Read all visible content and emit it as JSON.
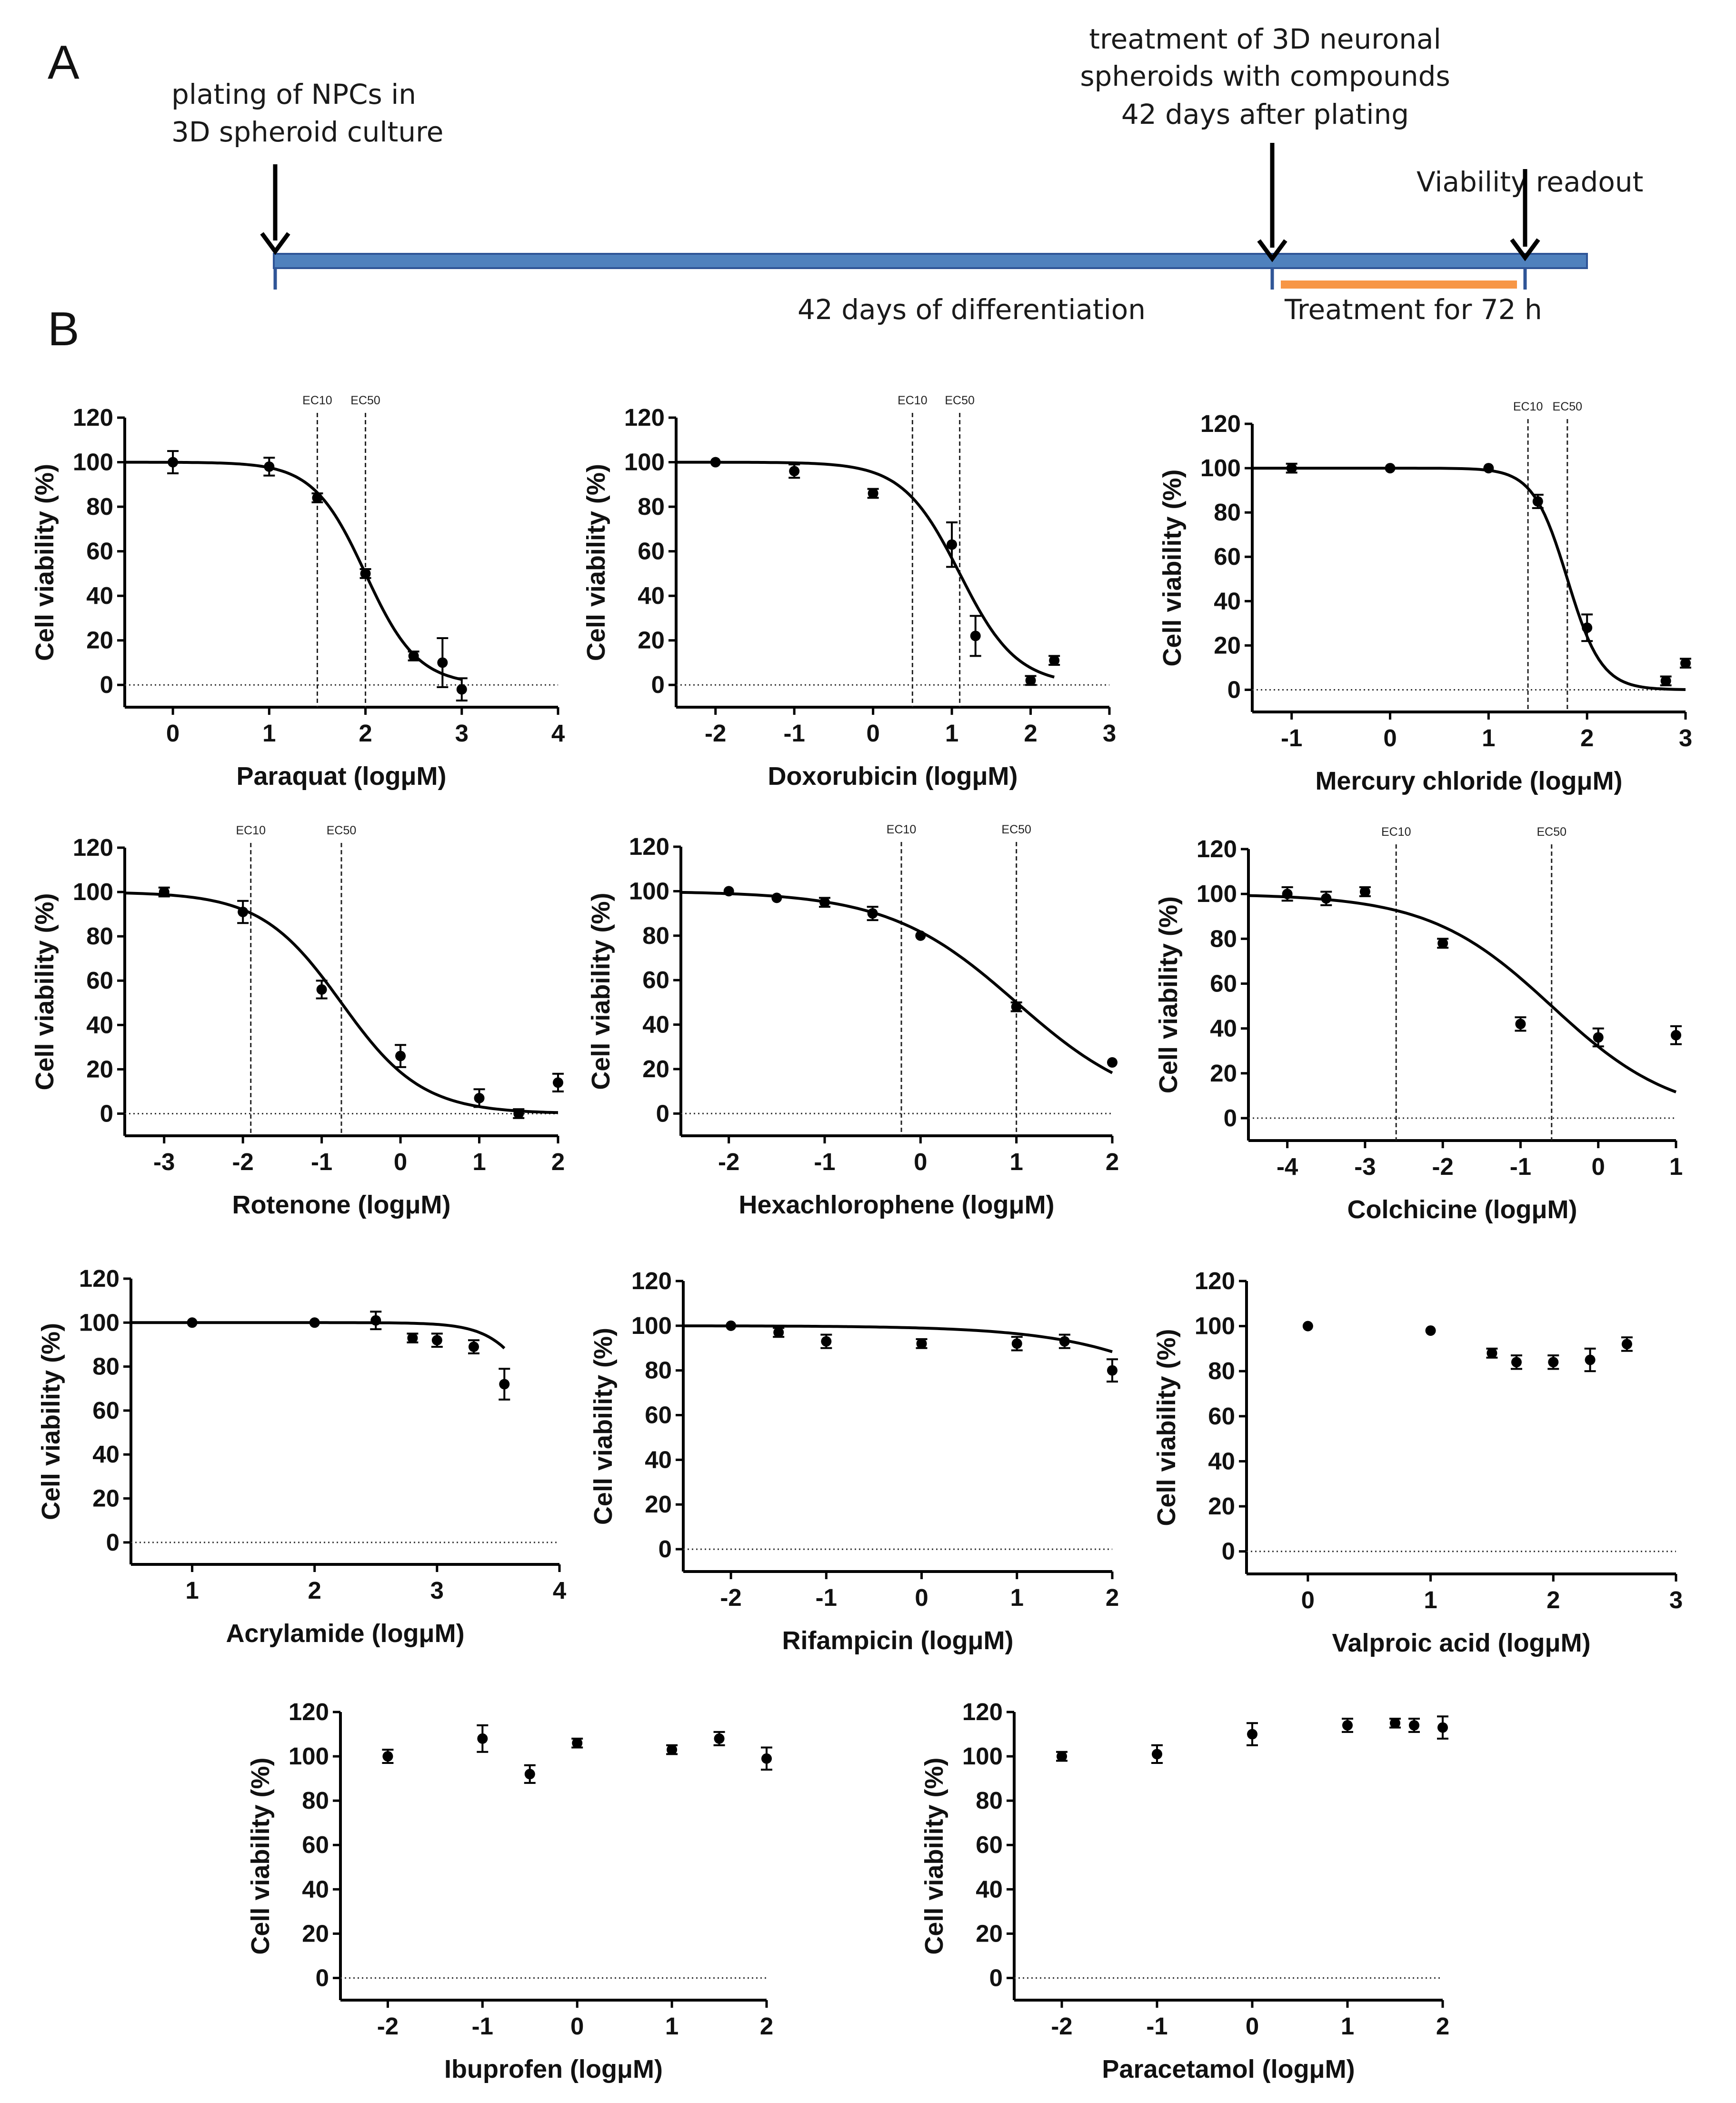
{
  "panel_a": {
    "letter": "A",
    "plating_label": [
      "plating of NPCs in",
      "3D spheroid culture"
    ],
    "treatment_label": [
      "treatment of 3D neuronal",
      "spheroids with compounds",
      "42 days after plating"
    ],
    "readout_label": "Viability readout",
    "differentiation_label": "42 days of differentiation",
    "treatment_duration_label": "Treatment for 72 h",
    "colors": {
      "timeline": "#4f81bd",
      "timeline_border": "#2f5597",
      "treatment_bar": "#f79646"
    }
  },
  "panel_b": {
    "letter": "B"
  },
  "chart_data": [
    {
      "id": "paraquat",
      "type": "scatter",
      "xlabel": "Paraquat (logμM)",
      "ylabel": "Cell viability (%)",
      "xlim": [
        -0.5,
        4
      ],
      "ylim": [
        -10,
        120
      ],
      "xticks": [
        0,
        1,
        2,
        3,
        4
      ],
      "yticks": [
        0,
        20,
        40,
        60,
        80,
        100,
        120
      ],
      "points": [
        {
          "x": 0,
          "y": 100,
          "err": 5
        },
        {
          "x": 1,
          "y": 98,
          "err": 4
        },
        {
          "x": 1.5,
          "y": 84,
          "err": 2
        },
        {
          "x": 2,
          "y": 50,
          "err": 2
        },
        {
          "x": 2.5,
          "y": 13,
          "err": 2
        },
        {
          "x": 2.8,
          "y": 10,
          "err": 11
        },
        {
          "x": 3,
          "y": -2,
          "err": 5
        }
      ],
      "fit": {
        "top": 100,
        "bottom": 0,
        "ec50": 2.0,
        "hill": -1.6,
        "x_range": [
          -0.5,
          3
        ]
      },
      "ec_lines": [
        {
          "label": "EC10",
          "x": 1.5
        },
        {
          "label": "EC50",
          "x": 2.0
        }
      ]
    },
    {
      "id": "doxorubicin",
      "type": "scatter",
      "xlabel": "Doxorubicin (logμM)",
      "ylabel": "Cell viability (%)",
      "xlim": [
        -2.5,
        3
      ],
      "ylim": [
        -10,
        120
      ],
      "xticks": [
        -2,
        -1,
        0,
        1,
        2,
        3
      ],
      "yticks": [
        0,
        20,
        40,
        60,
        80,
        100,
        120
      ],
      "points": [
        {
          "x": -2,
          "y": 100,
          "err": 0
        },
        {
          "x": -1,
          "y": 96,
          "err": 3
        },
        {
          "x": 0,
          "y": 86,
          "err": 2
        },
        {
          "x": 1,
          "y": 63,
          "err": 10
        },
        {
          "x": 1.3,
          "y": 22,
          "err": 9
        },
        {
          "x": 2,
          "y": 2,
          "err": 2
        },
        {
          "x": 2.3,
          "y": 11,
          "err": 2
        }
      ],
      "fit": {
        "top": 100,
        "bottom": 0,
        "ec50": 1.1,
        "hill": -1.2,
        "x_range": [
          -2.5,
          2.3
        ]
      },
      "ec_lines": [
        {
          "label": "EC10",
          "x": 0.5
        },
        {
          "label": "EC50",
          "x": 1.1
        }
      ]
    },
    {
      "id": "mercury_chloride",
      "type": "scatter",
      "xlabel": "Mercury chloride (logμM)",
      "ylabel": "Cell viability (%)",
      "xlim": [
        -1.4,
        3
      ],
      "ylim": [
        -10,
        120
      ],
      "xticks": [
        -1,
        0,
        1,
        2,
        3
      ],
      "yticks": [
        0,
        20,
        40,
        60,
        80,
        100,
        120
      ],
      "points": [
        {
          "x": -1,
          "y": 100,
          "err": 2
        },
        {
          "x": 0,
          "y": 100,
          "err": 0
        },
        {
          "x": 1,
          "y": 100,
          "err": 0
        },
        {
          "x": 1.5,
          "y": 85,
          "err": 3
        },
        {
          "x": 2,
          "y": 28,
          "err": 6
        },
        {
          "x": 2.8,
          "y": 4,
          "err": 2
        },
        {
          "x": 3,
          "y": 12,
          "err": 2
        }
      ],
      "fit": {
        "top": 100,
        "bottom": 0,
        "ec50": 1.8,
        "hill": -2.5,
        "x_range": [
          -1.4,
          3
        ]
      },
      "ec_lines": [
        {
          "label": "EC10",
          "x": 1.4
        },
        {
          "label": "EC50",
          "x": 1.8
        }
      ]
    },
    {
      "id": "rotenone",
      "type": "scatter",
      "xlabel": "Rotenone (logμM)",
      "ylabel": "Cell viability (%)",
      "xlim": [
        -3.5,
        2
      ],
      "ylim": [
        -10,
        120
      ],
      "xticks": [
        -3,
        -2,
        -1,
        0,
        1,
        2
      ],
      "yticks": [
        0,
        20,
        40,
        60,
        80,
        100,
        120
      ],
      "points": [
        {
          "x": -3,
          "y": 100,
          "err": 2
        },
        {
          "x": -2,
          "y": 91,
          "err": 5
        },
        {
          "x": -1,
          "y": 56,
          "err": 4
        },
        {
          "x": 0,
          "y": 26,
          "err": 5
        },
        {
          "x": 1,
          "y": 7,
          "err": 4
        },
        {
          "x": 1.5,
          "y": 0,
          "err": 2
        },
        {
          "x": 2,
          "y": 14,
          "err": 4
        }
      ],
      "fit": {
        "top": 100,
        "bottom": 0,
        "ec50": -0.75,
        "hill": -0.85,
        "x_range": [
          -3.5,
          2
        ]
      },
      "ec_lines": [
        {
          "label": "EC10",
          "x": -1.9
        },
        {
          "label": "EC50",
          "x": -0.75
        }
      ]
    },
    {
      "id": "hexachlorophene",
      "type": "scatter",
      "xlabel": "Hexachlorophene (logμM)",
      "ylabel": "Cell viability (%)",
      "xlim": [
        -2.5,
        2
      ],
      "ylim": [
        -10,
        120
      ],
      "xticks": [
        -2,
        -1,
        0,
        1,
        2
      ],
      "yticks": [
        0,
        20,
        40,
        60,
        80,
        100,
        120
      ],
      "points": [
        {
          "x": -2,
          "y": 100,
          "err": 0
        },
        {
          "x": -1.5,
          "y": 97,
          "err": 0
        },
        {
          "x": -1,
          "y": 95,
          "err": 2
        },
        {
          "x": -0.5,
          "y": 90,
          "err": 3
        },
        {
          "x": 0,
          "y": 80,
          "err": 0
        },
        {
          "x": 1,
          "y": 48,
          "err": 2
        },
        {
          "x": 2,
          "y": 23,
          "err": 0
        }
      ],
      "fit": {
        "top": 100,
        "bottom": 0,
        "ec50": 1.0,
        "hill": -0.65,
        "x_range": [
          -2.5,
          2
        ]
      },
      "ec_lines": [
        {
          "label": "EC10",
          "x": -0.2
        },
        {
          "label": "EC50",
          "x": 1.0
        }
      ]
    },
    {
      "id": "colchicine",
      "type": "scatter",
      "xlabel": "Colchicine (logμM)",
      "ylabel": "Cell viability (%)",
      "xlim": [
        -4.5,
        1
      ],
      "ylim": [
        -10,
        120
      ],
      "xticks": [
        -4,
        -3,
        -2,
        -1,
        0,
        1
      ],
      "yticks": [
        0,
        20,
        40,
        60,
        80,
        100,
        120
      ],
      "points": [
        {
          "x": -4,
          "y": 100,
          "err": 3
        },
        {
          "x": -3.5,
          "y": 98,
          "err": 3
        },
        {
          "x": -3,
          "y": 101,
          "err": 2
        },
        {
          "x": -2,
          "y": 78,
          "err": 2
        },
        {
          "x": -1,
          "y": 42,
          "err": 3
        },
        {
          "x": 0,
          "y": 36,
          "err": 4
        },
        {
          "x": 1,
          "y": 37,
          "err": 4
        }
      ],
      "fit": {
        "top": 100,
        "bottom": 0,
        "ec50": -0.6,
        "hill": -0.55,
        "x_range": [
          -4.5,
          1
        ]
      },
      "ec_lines": [
        {
          "label": "EC10",
          "x": -2.6
        },
        {
          "label": "EC50",
          "x": -0.6
        }
      ]
    },
    {
      "id": "acrylamide",
      "type": "scatter",
      "xlabel": "Acrylamide (logμM)",
      "ylabel": "Cell viability (%)",
      "xlim": [
        0.5,
        4
      ],
      "ylim": [
        -10,
        120
      ],
      "xticks": [
        1,
        2,
        3,
        4
      ],
      "yticks": [
        0,
        20,
        40,
        60,
        80,
        100,
        120
      ],
      "points": [
        {
          "x": 1,
          "y": 100,
          "err": 0
        },
        {
          "x": 2,
          "y": 100,
          "err": 0
        },
        {
          "x": 2.5,
          "y": 101,
          "err": 4
        },
        {
          "x": 2.8,
          "y": 93,
          "err": 2
        },
        {
          "x": 3,
          "y": 92,
          "err": 3
        },
        {
          "x": 3.3,
          "y": 89,
          "err": 3
        },
        {
          "x": 3.55,
          "y": 72,
          "err": 7
        }
      ],
      "fit": {
        "top": 100,
        "bottom": 0,
        "ec50": 3.95,
        "hill": -2.2,
        "x_range": [
          0.5,
          3.55
        ]
      },
      "ec_lines": []
    },
    {
      "id": "rifampicin",
      "type": "scatter",
      "xlabel": "Rifampicin (logμM)",
      "ylabel": "Cell viability (%)",
      "xlim": [
        -2.5,
        2
      ],
      "ylim": [
        -10,
        120
      ],
      "xticks": [
        -2,
        -1,
        0,
        1,
        2
      ],
      "yticks": [
        0,
        20,
        40,
        60,
        80,
        100,
        120
      ],
      "points": [
        {
          "x": -2,
          "y": 100,
          "err": 0
        },
        {
          "x": -1.5,
          "y": 97,
          "err": 2
        },
        {
          "x": -1,
          "y": 93,
          "err": 3
        },
        {
          "x": 0,
          "y": 92,
          "err": 2
        },
        {
          "x": 1,
          "y": 92,
          "err": 3
        },
        {
          "x": 1.5,
          "y": 93,
          "err": 3
        },
        {
          "x": 2,
          "y": 80,
          "err": 5
        }
      ],
      "fit": {
        "top": 100,
        "bottom": 0,
        "ec50": 3.6,
        "hill": -0.55,
        "x_range": [
          -2.5,
          2
        ]
      },
      "ec_lines": []
    },
    {
      "id": "valproic_acid",
      "type": "scatter",
      "xlabel": "Valproic acid (logμM)",
      "ylabel": "Cell viability (%)",
      "xlim": [
        -0.5,
        3
      ],
      "ylim": [
        -10,
        120
      ],
      "xticks": [
        0,
        1,
        2,
        3
      ],
      "yticks": [
        0,
        20,
        40,
        60,
        80,
        100,
        120
      ],
      "points": [
        {
          "x": 0,
          "y": 100,
          "err": 0
        },
        {
          "x": 1,
          "y": 98,
          "err": 0
        },
        {
          "x": 1.5,
          "y": 88,
          "err": 2
        },
        {
          "x": 1.7,
          "y": 84,
          "err": 3
        },
        {
          "x": 2,
          "y": 84,
          "err": 3
        },
        {
          "x": 2.3,
          "y": 85,
          "err": 5
        },
        {
          "x": 2.6,
          "y": 92,
          "err": 3
        }
      ],
      "fit": null,
      "ec_lines": []
    },
    {
      "id": "ibuprofen",
      "type": "scatter",
      "xlabel": "Ibuprofen (logμM)",
      "ylabel": "Cell viability (%)",
      "xlim": [
        -2.5,
        2
      ],
      "ylim": [
        -10,
        120
      ],
      "xticks": [
        -2,
        -1,
        0,
        1,
        2
      ],
      "yticks": [
        0,
        20,
        40,
        60,
        80,
        100,
        120
      ],
      "points": [
        {
          "x": -2,
          "y": 100,
          "err": 3
        },
        {
          "x": -1,
          "y": 108,
          "err": 6
        },
        {
          "x": -0.5,
          "y": 92,
          "err": 4
        },
        {
          "x": 0,
          "y": 106,
          "err": 2
        },
        {
          "x": 1,
          "y": 103,
          "err": 2
        },
        {
          "x": 1.5,
          "y": 108,
          "err": 3
        },
        {
          "x": 2,
          "y": 99,
          "err": 5
        }
      ],
      "fit": null,
      "ec_lines": []
    },
    {
      "id": "paracetamol",
      "type": "scatter",
      "xlabel": "Paracetamol (logμM)",
      "ylabel": "Cell viability (%)",
      "xlim": [
        -2.5,
        2
      ],
      "ylim": [
        -10,
        120
      ],
      "xticks": [
        -2,
        -1,
        0,
        1,
        2
      ],
      "yticks": [
        0,
        20,
        40,
        60,
        80,
        100,
        120
      ],
      "points": [
        {
          "x": -2,
          "y": 100,
          "err": 2
        },
        {
          "x": -1,
          "y": 101,
          "err": 4
        },
        {
          "x": 0,
          "y": 110,
          "err": 5
        },
        {
          "x": 1,
          "y": 114,
          "err": 3
        },
        {
          "x": 1.5,
          "y": 115,
          "err": 2
        },
        {
          "x": 1.7,
          "y": 114,
          "err": 3
        },
        {
          "x": 2,
          "y": 113,
          "err": 5
        }
      ],
      "fit": null,
      "ec_lines": []
    }
  ]
}
